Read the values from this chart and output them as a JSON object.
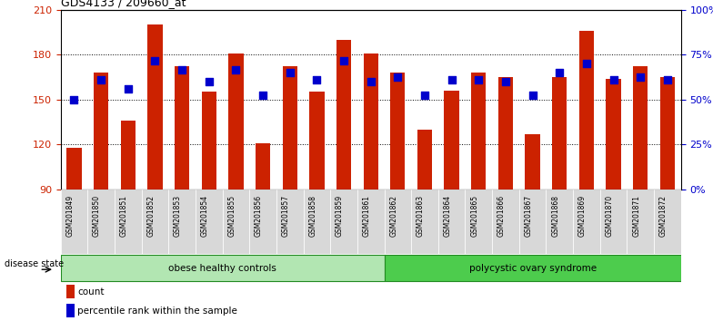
{
  "title": "GDS4133 / 209660_at",
  "samples": [
    "GSM201849",
    "GSM201850",
    "GSM201851",
    "GSM201852",
    "GSM201853",
    "GSM201854",
    "GSM201855",
    "GSM201856",
    "GSM201857",
    "GSM201858",
    "GSM201859",
    "GSM201861",
    "GSM201862",
    "GSM201863",
    "GSM201864",
    "GSM201865",
    "GSM201866",
    "GSM201867",
    "GSM201868",
    "GSM201869",
    "GSM201870",
    "GSM201871",
    "GSM201872"
  ],
  "counts": [
    118,
    168,
    136,
    200,
    172,
    155,
    181,
    121,
    172,
    155,
    190,
    181,
    168,
    130,
    156,
    168,
    165,
    127,
    165,
    196,
    164,
    172,
    165
  ],
  "percentiles": [
    150,
    163,
    157,
    176,
    170,
    162,
    170,
    153,
    168,
    163,
    176,
    162,
    165,
    153,
    163,
    163,
    162,
    153,
    168,
    174,
    163,
    165,
    163
  ],
  "group_colors": {
    "obese healthy controls": "#b2e6b2",
    "polycystic ovary syndrome": "#4dcc4d"
  },
  "bar_color": "#CC2200",
  "dot_color": "#0000CC",
  "ymin": 90,
  "ymax": 210,
  "yticks_left": [
    90,
    120,
    150,
    180,
    210
  ],
  "yticks_right": [
    0,
    25,
    50,
    75,
    100
  ],
  "bg_color": "#FFFFFF",
  "legend_items": [
    "count",
    "percentile rank within the sample"
  ],
  "disease_state_label": "disease state"
}
